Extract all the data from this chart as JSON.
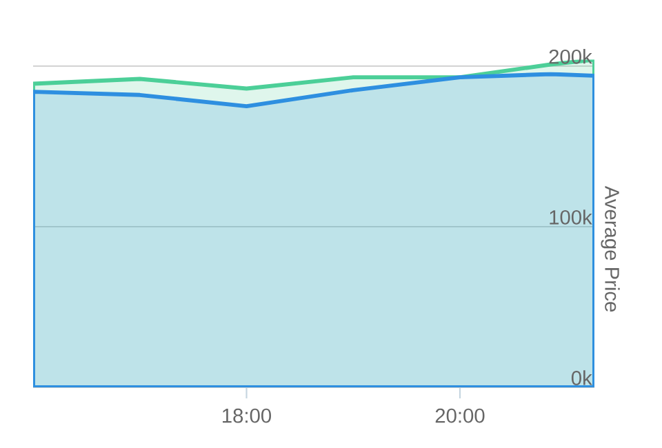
{
  "chart_data": {
    "type": "area",
    "ylabel": "Average Price",
    "x": [
      16,
      17,
      18,
      19,
      20,
      20.85,
      21.26
    ],
    "series": [
      {
        "color": "#4ccf98",
        "values": [
          189000,
          192000,
          186000,
          193000,
          193000,
          201000,
          204000
        ]
      },
      {
        "color": "#2e8fe0",
        "values": [
          184000,
          182000,
          175000,
          185000,
          193000,
          195000,
          194000
        ]
      }
    ],
    "xlim": [
      16,
      21.26
    ],
    "ylim": [
      0,
      204000
    ],
    "xticks": [
      {
        "value": 18,
        "label": "18:00"
      },
      {
        "value": 20,
        "label": "20:00"
      }
    ],
    "yticks": [
      {
        "value": 0,
        "label": "0k"
      },
      {
        "value": 100000,
        "label": "100k"
      },
      {
        "value": 200000,
        "label": "200k"
      }
    ],
    "grid": "y"
  }
}
